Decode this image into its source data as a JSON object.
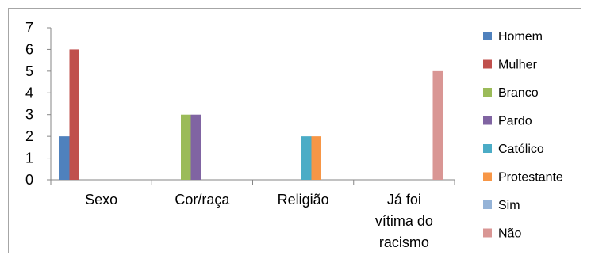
{
  "chart_data": {
    "type": "bar",
    "categories": [
      "Sexo",
      "Cor/raça",
      "Religião",
      "Já foi vítima do racismo"
    ],
    "category_lines": [
      [
        "Sexo"
      ],
      [
        "Cor/raça"
      ],
      [
        "Religião"
      ],
      [
        "Já foi",
        "vítima do",
        "racismo"
      ]
    ],
    "series": [
      {
        "name": "Homem",
        "color": "#4F81BD",
        "values": [
          2,
          null,
          null,
          null
        ]
      },
      {
        "name": "Mulher",
        "color": "#C0504D",
        "values": [
          6,
          null,
          null,
          null
        ]
      },
      {
        "name": "Branco",
        "color": "#9BBB59",
        "values": [
          null,
          3,
          null,
          null
        ]
      },
      {
        "name": "Pardo",
        "color": "#8064A2",
        "values": [
          null,
          3,
          null,
          null
        ]
      },
      {
        "name": "Católico",
        "color": "#4BACC6",
        "values": [
          null,
          null,
          2,
          null
        ]
      },
      {
        "name": "Protestante",
        "color": "#F79646",
        "values": [
          null,
          null,
          2,
          null
        ]
      },
      {
        "name": "Sim",
        "color": "#95B3D7",
        "values": [
          null,
          null,
          null,
          0
        ]
      },
      {
        "name": "Não",
        "color": "#D99694",
        "values": [
          null,
          null,
          null,
          5
        ]
      }
    ],
    "title": "",
    "xlabel": "",
    "ylabel": "",
    "ylim": [
      0,
      7
    ],
    "yticks": [
      0,
      1,
      2,
      3,
      4,
      5,
      6,
      7
    ],
    "grid": false,
    "legend_position": "right"
  }
}
